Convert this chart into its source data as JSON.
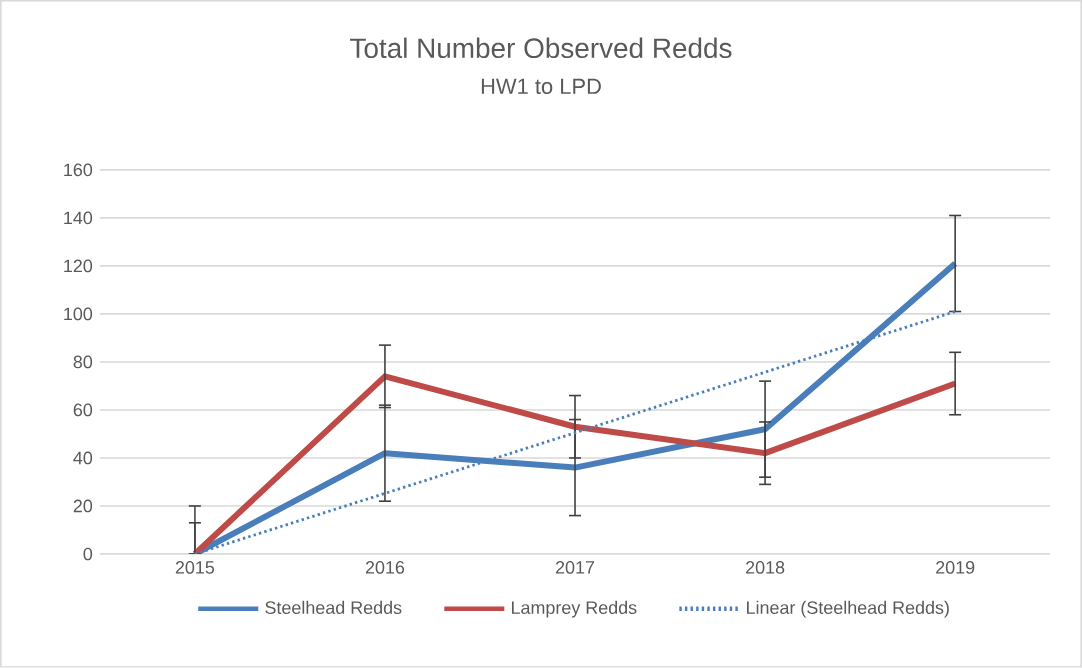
{
  "chart_data": {
    "type": "line",
    "title": "Total Number Observed Redds",
    "subtitle": "HW1 to LPD",
    "x": [
      2015,
      2016,
      2017,
      2018,
      2019
    ],
    "xlim": [
      2014.5,
      2019.5
    ],
    "xticks": [
      2015,
      2016,
      2017,
      2018,
      2019
    ],
    "ylim": [
      0,
      160
    ],
    "yticks": [
      0,
      20,
      40,
      60,
      80,
      100,
      120,
      140,
      160
    ],
    "grid": "y",
    "legend": "bottom",
    "series": [
      {
        "name": "Steelhead Redds",
        "color": "#4a7ebb",
        "values": [
          0,
          42,
          36,
          52,
          121
        ],
        "errors": [
          [
            0,
            20
          ],
          20,
          20,
          20,
          20
        ]
      },
      {
        "name": "Lamprey Redds",
        "color": "#be4b48",
        "values": [
          0,
          74,
          53,
          42,
          71
        ],
        "errors": [
          [
            0,
            13
          ],
          13,
          13,
          13,
          13
        ]
      },
      {
        "name": "Linear (Steelhead Redds)",
        "type": "line",
        "line_style": "dotted",
        "color": "#4a7ebb",
        "x": [
          2015,
          2019
        ],
        "values": [
          0,
          101
        ]
      }
    ]
  }
}
